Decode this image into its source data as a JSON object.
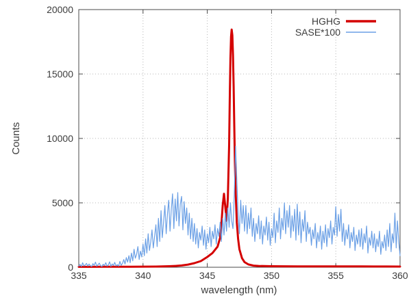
{
  "figure": {
    "background": "#ffffff",
    "border_color": "#4a4a4a",
    "grid_color": "#b5b5b5",
    "text_color": "#3c3c3c",
    "accent_red": "#d40000",
    "accent_blue": "#6a9fe5"
  },
  "chart_data": {
    "type": "line",
    "title": "",
    "xlabel": "wavelength (nm)",
    "ylabel": "Counts",
    "xlim": [
      335,
      360
    ],
    "ylim": [
      0,
      20000
    ],
    "xticks": [
      335,
      340,
      345,
      350,
      355,
      360
    ],
    "yticks": [
      0,
      5000,
      10000,
      15000,
      20000
    ],
    "grid": "dotted-at-major-ticks",
    "legend_position": "top-right-inside",
    "series": [
      {
        "name": "HGHG",
        "color": "#d40000",
        "width": 3,
        "points": [
          [
            335,
            30
          ],
          [
            336,
            32
          ],
          [
            337,
            35
          ],
          [
            338,
            38
          ],
          [
            339,
            42
          ],
          [
            340,
            48
          ],
          [
            341,
            55
          ],
          [
            341.5,
            65
          ],
          [
            342,
            80
          ],
          [
            342.5,
            100
          ],
          [
            343,
            140
          ],
          [
            343.5,
            210
          ],
          [
            344,
            320
          ],
          [
            344.5,
            480
          ],
          [
            345,
            800
          ],
          [
            345.4,
            1100
          ],
          [
            345.8,
            1600
          ],
          [
            346.0,
            2300
          ],
          [
            346.1,
            3300
          ],
          [
            346.2,
            4800
          ],
          [
            346.3,
            5700
          ],
          [
            346.4,
            4700
          ],
          [
            346.5,
            3600
          ],
          [
            346.6,
            5300
          ],
          [
            346.7,
            9500
          ],
          [
            346.75,
            13000
          ],
          [
            346.8,
            16200
          ],
          [
            346.85,
            17900
          ],
          [
            346.9,
            18450
          ],
          [
            346.95,
            18000
          ],
          [
            347.0,
            16500
          ],
          [
            347.05,
            14000
          ],
          [
            347.1,
            11000
          ],
          [
            347.15,
            8200
          ],
          [
            347.2,
            6000
          ],
          [
            347.3,
            3500
          ],
          [
            347.4,
            2200
          ],
          [
            347.5,
            1400
          ],
          [
            347.7,
            700
          ],
          [
            347.9,
            400
          ],
          [
            348.2,
            220
          ],
          [
            348.6,
            130
          ],
          [
            349,
            100
          ],
          [
            350,
            80
          ],
          [
            351,
            75
          ],
          [
            352,
            70
          ],
          [
            353,
            68
          ],
          [
            354,
            66
          ],
          [
            355,
            65
          ],
          [
            356,
            63
          ],
          [
            357,
            62
          ],
          [
            358,
            60
          ],
          [
            359,
            58
          ],
          [
            360,
            55
          ]
        ]
      },
      {
        "name": "SASE*100",
        "color": "#6a9fe5",
        "width": 1.2,
        "x_start": 335,
        "x_step": 0.1,
        "values": [
          80,
          220,
          60,
          350,
          100,
          180,
          300,
          90,
          250,
          120,
          60,
          280,
          150,
          400,
          80,
          200,
          320,
          110,
          60,
          240,
          130,
          350,
          90,
          180,
          420,
          70,
          260,
          140,
          380,
          100,
          200,
          90,
          450,
          150,
          300,
          600,
          250,
          750,
          400,
          900,
          350,
          1100,
          500,
          1400,
          700,
          1000,
          1600,
          600,
          1250,
          800,
          1800,
          900,
          2200,
          1100,
          2600,
          1300,
          2000,
          2900,
          1500,
          2400,
          3300,
          1600,
          3800,
          2000,
          4400,
          2300,
          3500,
          4800,
          2600,
          4100,
          5200,
          2800,
          4500,
          5700,
          3000,
          5300,
          3600,
          5800,
          3200,
          4900,
          5500,
          2900,
          5100,
          3400,
          4600,
          2500,
          4200,
          2200,
          3800,
          2000,
          3400,
          1800,
          3000,
          1500,
          2700,
          2100,
          3200,
          1700,
          2900,
          1400,
          2600,
          1900,
          3100,
          1600,
          2800,
          2200,
          3300,
          1800,
          3000,
          2400,
          3500,
          2000,
          3800,
          2500,
          4200,
          2800,
          4600,
          3100,
          5000,
          3600,
          3000,
          5600,
          9400,
          6800,
          4200,
          2600,
          5200,
          3400,
          4800,
          2800,
          4800,
          2600,
          4200,
          3000,
          4600,
          2400,
          3800,
          2000,
          3400,
          2600,
          4000,
          2200,
          3600,
          1800,
          3200,
          2500,
          3900,
          2100,
          3500,
          1700,
          3000,
          2300,
          4200,
          1900,
          3600,
          2700,
          4600,
          2200,
          3800,
          2900,
          5000,
          2600,
          4400,
          3100,
          4800,
          2300,
          4000,
          2800,
          4500,
          2100,
          4900,
          2500,
          4300,
          1900,
          3700,
          2800,
          4400,
          2000,
          3500,
          2600,
          3100,
          1700,
          2900,
          2200,
          3400,
          1500,
          2700,
          2000,
          3200,
          1400,
          2800,
          1900,
          3300,
          1600,
          3000,
          2300,
          3600,
          1800,
          3100,
          2500,
          4700,
          2400,
          4100,
          2800,
          4500,
          2000,
          3400,
          1700,
          2900,
          2200,
          3300,
          1500,
          2700,
          2000,
          3100,
          1300,
          2500,
          1800,
          2900,
          1600,
          3000,
          1400,
          2600,
          1900,
          3200,
          1100,
          2300,
          1700,
          2800,
          1500,
          2600,
          1200,
          2200,
          1600,
          2800,
          1000,
          2000,
          1500,
          2500,
          1300,
          2900,
          1600,
          3400,
          1200,
          2600,
          1900,
          4200,
          1500,
          3600,
          2000,
          900
        ]
      }
    ]
  }
}
